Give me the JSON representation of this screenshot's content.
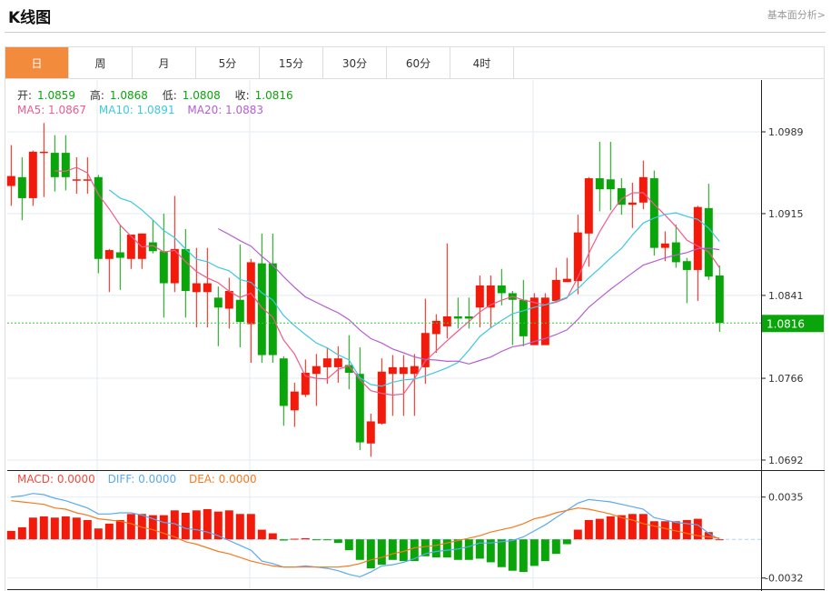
{
  "header": {
    "title": "K线图",
    "link": "基本面分析>"
  },
  "tabs": [
    {
      "label": "日",
      "active": true
    },
    {
      "label": "周"
    },
    {
      "label": "月"
    },
    {
      "label": "5分"
    },
    {
      "label": "15分"
    },
    {
      "label": "30分"
    },
    {
      "label": "60分"
    },
    {
      "label": "4时"
    }
  ],
  "ohlc_info": {
    "open_label": "开:",
    "open": "1.0859",
    "high_label": "高:",
    "high": "1.0868",
    "low_label": "低:",
    "low": "1.0808",
    "close_label": "收:",
    "close": "1.0816"
  },
  "ma_info": {
    "ma5": "MA5: 1.0867",
    "ma10": "MA10: 1.0891",
    "ma20": "MA20: 1.0883"
  },
  "macd_info": {
    "macd": "MACD: 0.0000",
    "diff": "DIFF: 0.0000",
    "dea": "DEA: 0.0000"
  },
  "colors": {
    "up": "#f21a0a",
    "down": "#0aa50a",
    "ma5": "#ef5b8c",
    "ma10": "#3ec8e0",
    "ma20": "#b55fcf",
    "diff": "#5aaaf0",
    "dea": "#f57a1e",
    "tab_active": "#f28c3c"
  },
  "chart_data": [
    {
      "type": "candlestick",
      "y_ticks": [
        "1.0989",
        "1.0915",
        "1.0841",
        "1.0766",
        "1.0692"
      ],
      "ylim": [
        1.0692,
        1.0989
      ],
      "current_price": "1.0816",
      "grid": true,
      "ma_periods": [
        5,
        10,
        20
      ],
      "ohlc": [
        [
          1.094,
          1.0977,
          1.0922,
          1.0949
        ],
        [
          1.0948,
          1.0966,
          1.0909,
          1.0929
        ],
        [
          1.0929,
          1.0972,
          1.0922,
          1.0971
        ],
        [
          1.0971,
          1.0997,
          1.093,
          1.0971
        ],
        [
          1.097,
          1.0986,
          1.0935,
          1.0948
        ],
        [
          1.097,
          1.0986,
          1.0936,
          1.0948
        ],
        [
          1.0946,
          1.0966,
          1.0933,
          1.0946
        ],
        [
          1.0946,
          1.0966,
          1.0933,
          1.0946
        ],
        [
          1.0948,
          1.095,
          1.0861,
          1.0874
        ],
        [
          1.0874,
          1.0883,
          1.0844,
          1.0882
        ],
        [
          1.088,
          1.0905,
          1.0846,
          1.0875
        ],
        [
          1.0874,
          1.0896,
          1.0865,
          1.0896
        ],
        [
          1.0874,
          1.0897,
          1.0865,
          1.0897
        ],
        [
          1.0889,
          1.0909,
          1.0879,
          1.0881
        ],
        [
          1.0881,
          1.0915,
          1.0821,
          1.0852
        ],
        [
          1.0852,
          1.0931,
          1.0844,
          1.0883
        ],
        [
          1.0883,
          1.0901,
          1.0821,
          1.0845
        ],
        [
          1.0844,
          1.0884,
          1.0812,
          1.0852
        ],
        [
          1.0844,
          1.0884,
          1.0812,
          1.0852
        ],
        [
          1.0839,
          1.0849,
          1.0795,
          1.083
        ],
        [
          1.0829,
          1.0857,
          1.0811,
          1.0845
        ],
        [
          1.0837,
          1.0887,
          1.0794,
          1.0817
        ],
        [
          1.0815,
          1.0874,
          1.078,
          1.0871
        ],
        [
          1.087,
          1.0897,
          1.078,
          1.0787
        ],
        [
          1.087,
          1.0897,
          1.078,
          1.0787
        ],
        [
          1.0784,
          1.0786,
          1.0723,
          1.0741
        ],
        [
          1.0737,
          1.0762,
          1.0722,
          1.0754
        ],
        [
          1.0751,
          1.0783,
          1.0749,
          1.0771
        ],
        [
          1.077,
          1.0788,
          1.0741,
          1.0777
        ],
        [
          1.0776,
          1.0794,
          1.0761,
          1.0784
        ],
        [
          1.0776,
          1.0795,
          1.0762,
          1.0784
        ],
        [
          1.0778,
          1.0805,
          1.0756,
          1.0771
        ],
        [
          1.077,
          1.0794,
          1.0701,
          1.0708
        ],
        [
          1.0707,
          1.0734,
          1.0695,
          1.0727
        ],
        [
          1.0725,
          1.0784,
          1.0724,
          1.0772
        ],
        [
          1.077,
          1.0787,
          1.0732,
          1.0776
        ],
        [
          1.077,
          1.0787,
          1.0732,
          1.0776
        ],
        [
          1.077,
          1.0788,
          1.0732,
          1.0777
        ],
        [
          1.0776,
          1.0838,
          1.0761,
          1.0807
        ],
        [
          1.0806,
          1.0824,
          1.0789,
          1.0818
        ],
        [
          1.0813,
          1.0888,
          1.0802,
          1.0822
        ],
        [
          1.0822,
          1.0839,
          1.0811,
          1.082
        ],
        [
          1.0822,
          1.0839,
          1.0811,
          1.082
        ],
        [
          1.083,
          1.0859,
          1.0812,
          1.085
        ],
        [
          1.083,
          1.0859,
          1.0812,
          1.085
        ],
        [
          1.085,
          1.0865,
          1.0832,
          1.0843
        ],
        [
          1.0843,
          1.0845,
          1.0796,
          1.0837
        ],
        [
          1.0837,
          1.0855,
          1.0795,
          1.0804
        ],
        [
          1.0796,
          1.0843,
          1.0796,
          1.0839
        ],
        [
          1.0796,
          1.0843,
          1.0796,
          1.0839
        ],
        [
          1.0836,
          1.0866,
          1.0836,
          1.0855
        ],
        [
          1.0853,
          1.0875,
          1.0853,
          1.0856
        ],
        [
          1.0854,
          1.0914,
          1.0842,
          1.0898
        ],
        [
          1.0897,
          1.0948,
          1.0867,
          1.0947
        ],
        [
          1.0947,
          1.098,
          1.0917,
          1.0937
        ],
        [
          1.0946,
          1.098,
          1.0918,
          1.0937
        ],
        [
          1.0938,
          1.0947,
          1.0914,
          1.0923
        ],
        [
          1.0923,
          1.0943,
          1.0902,
          1.0925
        ],
        [
          1.0925,
          1.0963,
          1.0919,
          1.0948
        ],
        [
          1.0947,
          1.0954,
          1.0877,
          1.0884
        ],
        [
          1.0884,
          1.0899,
          1.0872,
          1.0888
        ],
        [
          1.0889,
          1.0905,
          1.0866,
          1.0871
        ],
        [
          1.0872,
          1.0875,
          1.0834,
          1.0864
        ],
        [
          1.0864,
          1.0922,
          1.0836,
          1.0921
        ],
        [
          1.092,
          1.0942,
          1.0855,
          1.0858
        ],
        [
          1.0859,
          1.0868,
          1.0808,
          1.0816
        ]
      ]
    },
    {
      "type": "macd",
      "y_ticks": [
        "0.0035",
        "-0.0032"
      ],
      "ylim": [
        -0.0032,
        0.0035
      ],
      "macd": [
        0.0007,
        0.001,
        0.0018,
        0.0019,
        0.0018,
        0.0019,
        0.0018,
        0.0016,
        0.0009,
        0.0013,
        0.0016,
        0.0021,
        0.0021,
        0.002,
        0.002,
        0.0024,
        0.0022,
        0.0024,
        0.0025,
        0.0023,
        0.0024,
        0.0021,
        0.0021,
        0.0008,
        0.0005,
        -0.0001,
        5e-05,
        0.0001,
        -2e-05,
        -1e-05,
        -0.0003,
        -0.0009,
        -0.0017,
        -0.0024,
        -0.0021,
        -0.0017,
        -0.0018,
        -0.0018,
        -0.0014,
        -0.0015,
        -0.0015,
        -0.0017,
        -0.0017,
        -0.0016,
        -0.0019,
        -0.0023,
        -0.0026,
        -0.0027,
        -0.0022,
        -0.0018,
        -0.0012,
        -0.0004,
        0.0008,
        0.0016,
        0.0017,
        0.0019,
        0.002,
        0.0021,
        0.0021,
        0.0015,
        0.0015,
        0.0015,
        0.0016,
        0.0017,
        0.0006,
        0.0
      ],
      "diff": [
        0.0035,
        0.0036,
        0.0038,
        0.0037,
        0.0034,
        0.0032,
        0.0029,
        0.0026,
        0.0021,
        0.0021,
        0.0022,
        0.0022,
        0.002,
        0.0017,
        0.0014,
        0.0013,
        0.0009,
        0.0008,
        0.0006,
        0.0003,
        -0.0001,
        -0.0005,
        -0.0009,
        -0.0018,
        -0.002,
        -0.0023,
        -0.0023,
        -0.0022,
        -0.0023,
        -0.0024,
        -0.0026,
        -0.0029,
        -0.0031,
        -0.0027,
        -0.0022,
        -0.0021,
        -0.0019,
        -0.0016,
        -0.0012,
        -0.001,
        -0.0009,
        -0.0008,
        -0.0006,
        -0.0003,
        -0.0003,
        -0.0002,
        -0.0001,
        0.0002,
        0.0007,
        0.0012,
        0.0018,
        0.0024,
        0.003,
        0.0033,
        0.0032,
        0.0031,
        0.0029,
        0.0027,
        0.0025,
        0.0018,
        0.0016,
        0.0014,
        0.0013,
        0.0012,
        0.0005,
        0.0
      ],
      "dea": [
        0.0032,
        0.0031,
        0.003,
        0.0029,
        0.0026,
        0.0025,
        0.0022,
        0.002,
        0.0017,
        0.0016,
        0.0015,
        0.0013,
        0.001,
        0.0008,
        0.0005,
        0.0002,
        -0.0002,
        -0.0004,
        -0.0007,
        -0.001,
        -0.0012,
        -0.0015,
        -0.0018,
        -0.002,
        -0.0022,
        -0.0023,
        -0.0023,
        -0.0023,
        -0.0023,
        -0.0023,
        -0.0023,
        -0.0022,
        -0.002,
        -0.0017,
        -0.0015,
        -0.0012,
        -0.001,
        -0.0007,
        -0.0006,
        -0.0005,
        -0.0003,
        -0.0001,
        0.0001,
        0.0003,
        0.0006,
        0.0008,
        0.001,
        0.0013,
        0.0017,
        0.0019,
        0.0022,
        0.0024,
        0.0026,
        0.0025,
        0.0023,
        0.0021,
        0.0018,
        0.0016,
        0.0013,
        0.0011,
        0.0009,
        0.0007,
        0.0005,
        0.0003,
        0.0002,
        0.0001
      ]
    }
  ]
}
